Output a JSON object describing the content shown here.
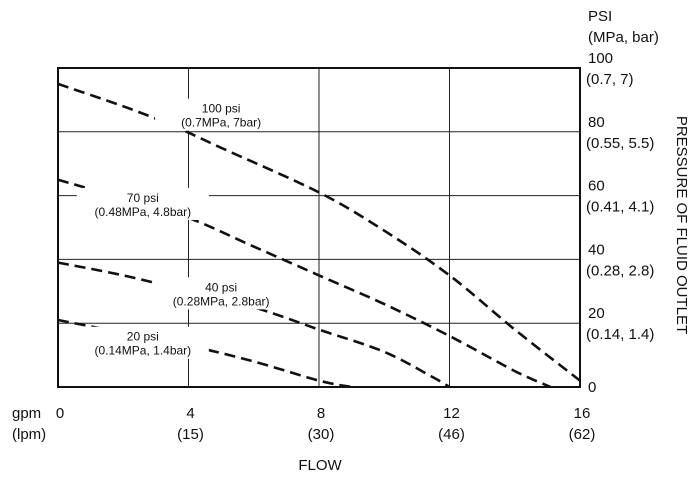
{
  "chart_data": {
    "type": "line",
    "y_unit_label": [
      "PSI",
      "(MPa, bar)"
    ],
    "ylabel": "PRESSURE OF FLUID OUTLET",
    "xlabel": "FLOW",
    "x_unit_labels": [
      "gpm",
      "(lpm)"
    ],
    "xlim": [
      0,
      16
    ],
    "ylim": [
      0,
      100
    ],
    "x_ticks": [
      {
        "value": 0,
        "label": "0",
        "sub": ""
      },
      {
        "value": 4,
        "label": "4",
        "sub": "(15)"
      },
      {
        "value": 8,
        "label": "8",
        "sub": "(30)"
      },
      {
        "value": 12,
        "label": "12",
        "sub": "(46)"
      },
      {
        "value": 16,
        "label": "16",
        "sub": "(62)"
      }
    ],
    "y_ticks": [
      {
        "value": 0,
        "label": "0",
        "sub": ""
      },
      {
        "value": 20,
        "label": "20",
        "sub": "(0.14, 1.4)"
      },
      {
        "value": 40,
        "label": "40",
        "sub": "(0.28, 2.8)"
      },
      {
        "value": 60,
        "label": "60",
        "sub": "(0.41, 4.1)"
      },
      {
        "value": 80,
        "label": "80",
        "sub": "(0.55, 5.5)"
      },
      {
        "value": 100,
        "label": "100",
        "sub": "(0.7, 7)"
      }
    ],
    "grid": true,
    "line_style": "dashed",
    "series": [
      {
        "name": "100 psi",
        "label": [
          "100 psi",
          "(0.7MPa, 7bar)"
        ],
        "label_at": [
          5.0,
          86
        ],
        "points": [
          [
            0,
            95
          ],
          [
            2,
            88
          ],
          [
            3.5,
            82
          ],
          [
            5,
            75
          ],
          [
            8,
            61
          ],
          [
            10,
            49
          ],
          [
            12,
            35
          ],
          [
            14,
            18
          ],
          [
            16,
            2
          ]
        ]
      },
      {
        "name": "70 psi",
        "label": [
          "70 psi",
          "(0.48MPa, 4.8bar)"
        ],
        "label_at": [
          2.6,
          58
        ],
        "points": [
          [
            0,
            65
          ],
          [
            2,
            59
          ],
          [
            4,
            53
          ],
          [
            6,
            44
          ],
          [
            8,
            35
          ],
          [
            10,
            26
          ],
          [
            12,
            16
          ],
          [
            14,
            5
          ],
          [
            15.1,
            0
          ]
        ]
      },
      {
        "name": "40 psi",
        "label": [
          "40 psi",
          "(0.28MPa, 2.8bar)"
        ],
        "label_at": [
          5.0,
          30
        ],
        "points": [
          [
            0,
            39
          ],
          [
            2,
            35
          ],
          [
            4,
            30
          ],
          [
            6,
            25
          ],
          [
            8,
            18
          ],
          [
            10,
            11
          ],
          [
            11.5,
            3
          ],
          [
            12,
            0
          ]
        ]
      },
      {
        "name": "20 psi",
        "label": [
          "20 psi",
          "(0.14MPa, 1.4bar)"
        ],
        "label_at": [
          2.6,
          14.5
        ],
        "points": [
          [
            0,
            21
          ],
          [
            2,
            17
          ],
          [
            4,
            13
          ],
          [
            6,
            8
          ],
          [
            8,
            2
          ],
          [
            9,
            0
          ]
        ]
      }
    ]
  }
}
